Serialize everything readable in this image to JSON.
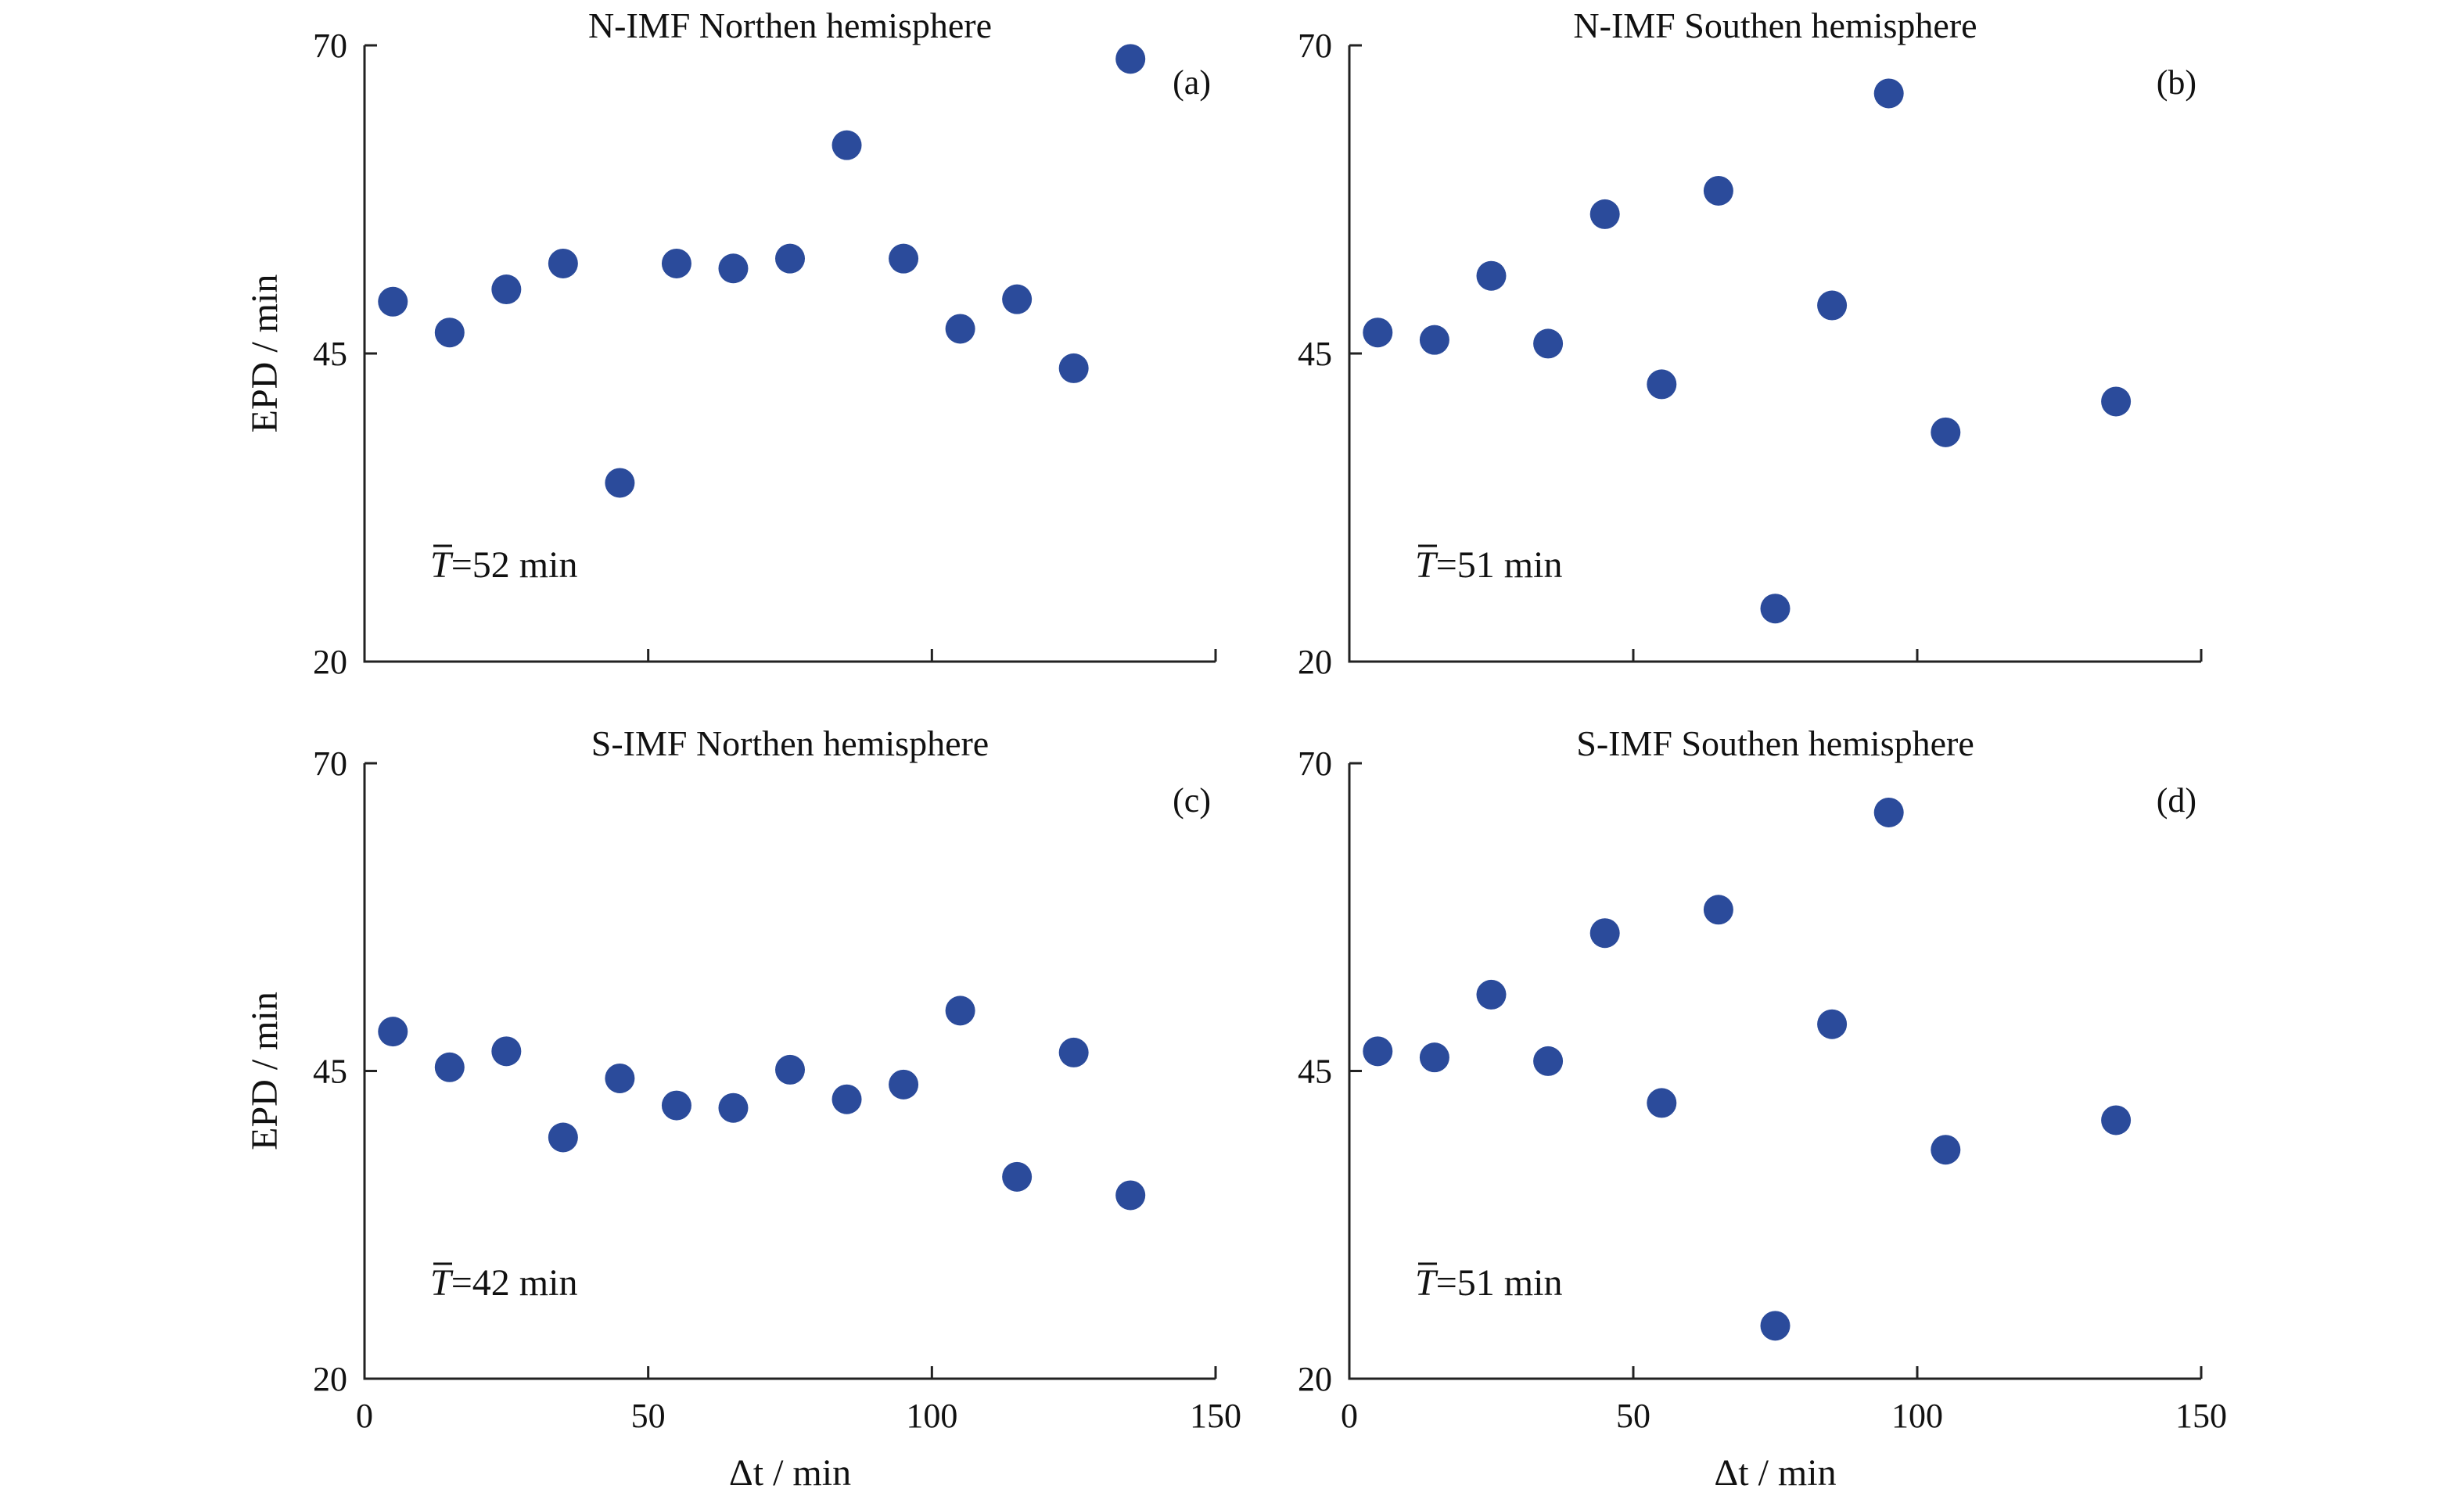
{
  "chart_data": [
    {
      "type": "scatter",
      "panel": "(a)",
      "title": "N-IMF Northen hemisphere",
      "xlabel": "",
      "ylabel": "EPD / min",
      "xlim": [
        0,
        150
      ],
      "ylim": [
        20,
        70
      ],
      "xticks": [
        "0",
        "50",
        "100",
        "150"
      ],
      "yticks": [
        "20",
        "45",
        "70"
      ],
      "show_xticklabels": false,
      "annotation": {
        "symbol": "T",
        "text": "=52 min"
      },
      "marker_color": "#2b4b9b",
      "x": [
        5,
        15,
        25,
        35,
        45,
        55,
        65,
        75,
        85,
        95,
        105,
        115,
        125,
        135
      ],
      "y": [
        49.2,
        46.7,
        50.2,
        52.3,
        34.5,
        52.3,
        51.9,
        52.7,
        61.9,
        52.7,
        47.0,
        49.4,
        43.8,
        68.9
      ]
    },
    {
      "type": "scatter",
      "panel": "(b)",
      "title": "N-IMF Southen hemisphere",
      "xlabel": "",
      "ylabel": "",
      "xlim": [
        0,
        150
      ],
      "ylim": [
        20,
        70
      ],
      "xticks": [
        "0",
        "50",
        "100",
        "150"
      ],
      "yticks": [
        "20",
        "45",
        "70"
      ],
      "show_xticklabels": false,
      "annotation": {
        "symbol": "T",
        "text": "=51 min"
      },
      "marker_color": "#2b4b9b",
      "x": [
        5,
        15,
        25,
        35,
        45,
        55,
        65,
        75,
        85,
        95,
        105,
        135
      ],
      "y": [
        46.7,
        46.1,
        51.3,
        45.8,
        56.3,
        42.5,
        58.2,
        24.3,
        48.9,
        66.1,
        38.6,
        41.1
      ]
    },
    {
      "type": "scatter",
      "panel": "(c)",
      "title": "S-IMF Northen hemisphere",
      "xlabel": "Δt / min",
      "ylabel": "EPD / min",
      "xlim": [
        0,
        150
      ],
      "ylim": [
        20,
        70
      ],
      "xticks": [
        "0",
        "50",
        "100",
        "150"
      ],
      "yticks": [
        "20",
        "45",
        "70"
      ],
      "show_xticklabels": true,
      "annotation": {
        "symbol": "T",
        "text": "=42 min"
      },
      "marker_color": "#2b4b9b",
      "x": [
        5,
        15,
        25,
        35,
        45,
        55,
        65,
        75,
        85,
        95,
        105,
        115,
        125,
        135
      ],
      "y": [
        48.2,
        45.3,
        46.6,
        39.6,
        44.4,
        42.2,
        42.0,
        45.1,
        42.7,
        43.9,
        49.9,
        36.4,
        46.5,
        34.9
      ]
    },
    {
      "type": "scatter",
      "panel": "(d)",
      "title": "S-IMF Southen hemisphere",
      "xlabel": "Δt / min",
      "ylabel": "",
      "xlim": [
        0,
        150
      ],
      "ylim": [
        20,
        70
      ],
      "xticks": [
        "0",
        "50",
        "100",
        "150"
      ],
      "yticks": [
        "20",
        "45",
        "70"
      ],
      "show_xticklabels": true,
      "annotation": {
        "symbol": "T",
        "text": "=51 min"
      },
      "marker_color": "#2b4b9b",
      "x": [
        5,
        15,
        25,
        35,
        45,
        55,
        65,
        75,
        85,
        95,
        105,
        135
      ],
      "y": [
        46.6,
        46.1,
        51.2,
        45.8,
        56.2,
        42.4,
        58.1,
        24.3,
        48.8,
        66.0,
        38.6,
        41.0
      ]
    }
  ]
}
